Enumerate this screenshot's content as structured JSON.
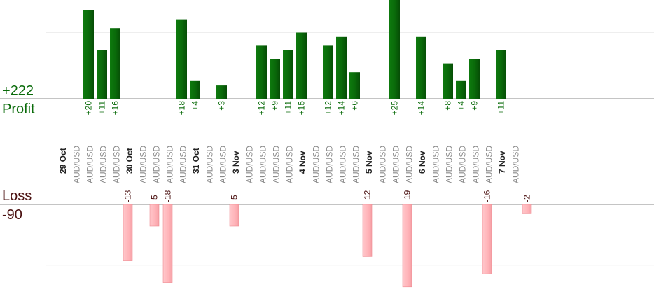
{
  "profit": {
    "label": "Profit",
    "total": "+222"
  },
  "loss": {
    "label": "Loss",
    "total": "-90"
  },
  "colors": {
    "profit_bar": "#0a6b0a",
    "profit_text": "#0a6b0a",
    "loss_bar": "#ffb3b8",
    "loss_bar_edge": "#f08a92",
    "loss_text": "#4a1010",
    "instrument_text": "#8a8a8a",
    "date_text": "#222222",
    "baseline": "#888888",
    "grid": "#eeeeee"
  },
  "chart_data": {
    "type": "bar",
    "instrument": "AUD/USD",
    "dates": [
      "29 Oct",
      "30 Oct",
      "31 Oct",
      "3 Nov",
      "4 Nov",
      "5 Nov",
      "6 Nov",
      "7 Nov"
    ],
    "trades": [
      {
        "date": "29 Oct",
        "value": 20,
        "label": "+20"
      },
      {
        "date": "29 Oct",
        "value": 11,
        "label": "+11"
      },
      {
        "date": "29 Oct",
        "value": 16,
        "label": "+16"
      },
      {
        "date": "29 Oct",
        "value": -13,
        "label": "-13"
      },
      {
        "date": "30 Oct",
        "value": -5,
        "label": "-5"
      },
      {
        "date": "30 Oct",
        "value": -18,
        "label": "-18"
      },
      {
        "date": "30 Oct",
        "value": 18,
        "label": "+18"
      },
      {
        "date": "30 Oct",
        "value": 4,
        "label": "+4"
      },
      {
        "date": "31 Oct",
        "value": 3,
        "label": "+3"
      },
      {
        "date": "31 Oct",
        "value": -5,
        "label": "-5"
      },
      {
        "date": "3 Nov",
        "value": 12,
        "label": "+12"
      },
      {
        "date": "3 Nov",
        "value": 9,
        "label": "+9"
      },
      {
        "date": "3 Nov",
        "value": 11,
        "label": "+11"
      },
      {
        "date": "3 Nov",
        "value": 15,
        "label": "+15"
      },
      {
        "date": "4 Nov",
        "value": 12,
        "label": "+12"
      },
      {
        "date": "4 Nov",
        "value": 14,
        "label": "+14"
      },
      {
        "date": "4 Nov",
        "value": 6,
        "label": "+6"
      },
      {
        "date": "4 Nov",
        "value": -12,
        "label": "-12"
      },
      {
        "date": "5 Nov",
        "value": 25,
        "label": "+25"
      },
      {
        "date": "5 Nov",
        "value": -19,
        "label": "-19"
      },
      {
        "date": "5 Nov",
        "value": 14,
        "label": "+14"
      },
      {
        "date": "6 Nov",
        "value": 8,
        "label": "+8"
      },
      {
        "date": "6 Nov",
        "value": 4,
        "label": "+4"
      },
      {
        "date": "6 Nov",
        "value": 9,
        "label": "+9"
      },
      {
        "date": "6 Nov",
        "value": -16,
        "label": "-16"
      },
      {
        "date": "6 Nov",
        "value": 11,
        "label": "+11"
      },
      {
        "date": "7 Nov",
        "value": -2,
        "label": "-2"
      }
    ],
    "profit_axis_max": 15,
    "loss_axis_max": 14
  }
}
